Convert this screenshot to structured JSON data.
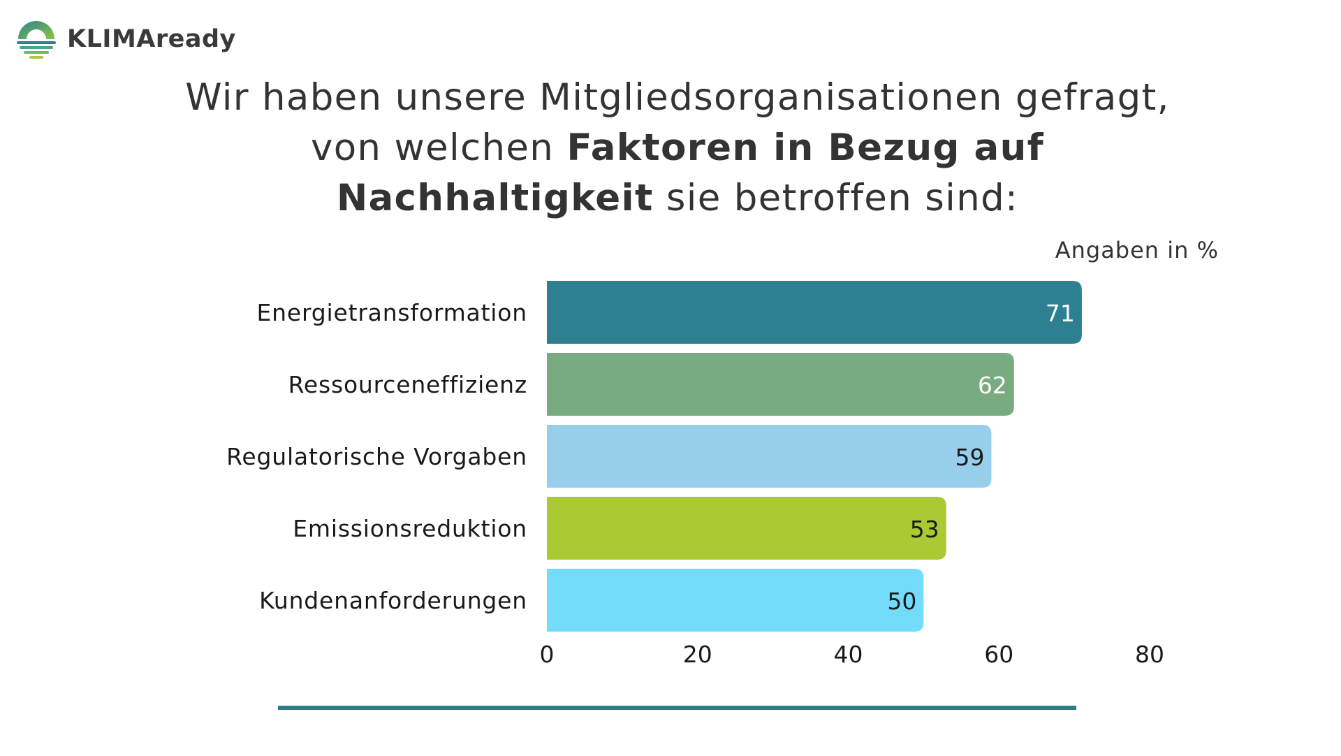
{
  "brand": {
    "name": "KLIMAready"
  },
  "heading": {
    "line1": "Wir haben unsere Mitgliedsorganisationen gefragt,",
    "line2_plain": "von welchen ",
    "line2_bold": "Faktoren in Bezug auf",
    "line3_bold": "Nachhaltigkeit",
    "line3_plain": " sie betroffen sind:"
  },
  "chart_data": {
    "type": "bar",
    "orientation": "horizontal",
    "unit_note": "Angaben in %",
    "categories": [
      "Energietransformation",
      "Ressourceneffizienz",
      "Regulatorische Vorgaben",
      "Emissionsreduktion",
      "Kundenanforderungen"
    ],
    "values": [
      71,
      62,
      59,
      53,
      50
    ],
    "value_labels": [
      "71",
      "62",
      "59",
      "53",
      "50"
    ],
    "colors": [
      "#2d8092",
      "#78ab80",
      "#97ceec",
      "#aac933",
      "#74dcfb"
    ],
    "label_colors": [
      "#ffffff",
      "#ffffff",
      "#1a1a1a",
      "#1a1a1a",
      "#1a1a1a"
    ],
    "xlim": [
      0,
      80
    ],
    "x_ticks": [
      "0",
      "20",
      "40",
      "60",
      "80"
    ],
    "grid": false,
    "legend": "none"
  },
  "footer": {
    "rule_color": "#2e7a88"
  }
}
